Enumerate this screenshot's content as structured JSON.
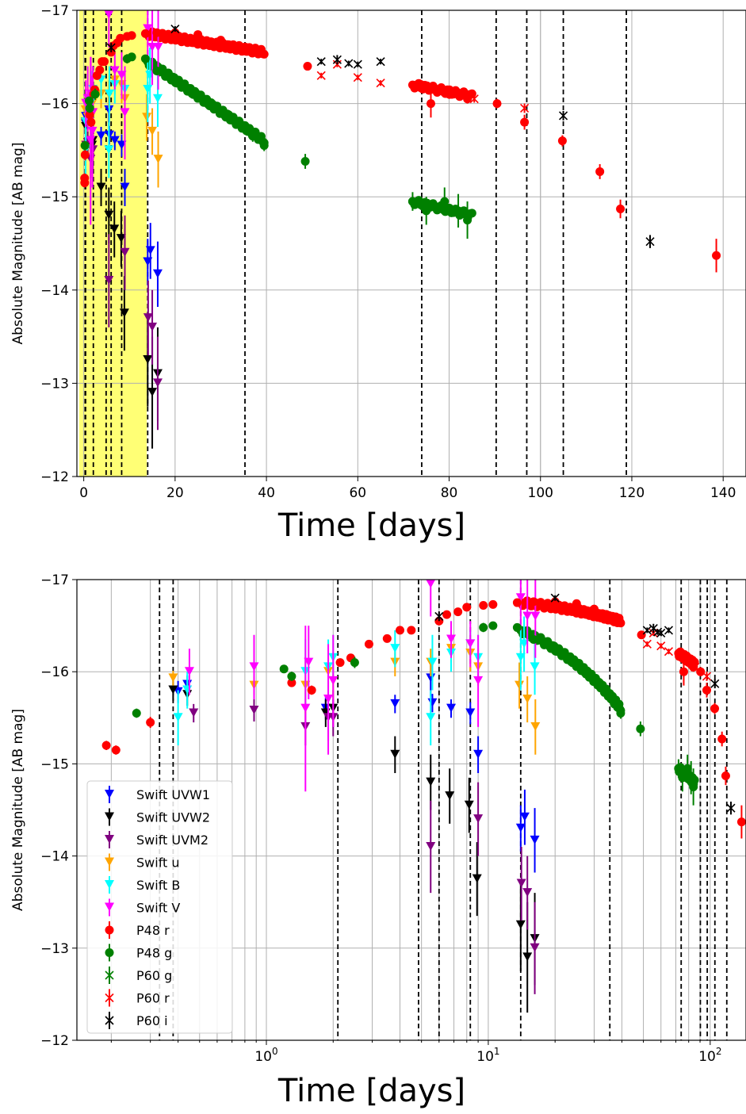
{
  "colors": {
    "Swift UVW1": "#0000ff",
    "Swift UVW2": "#000000",
    "Swift UVM2": "#800080",
    "Swift u": "#ffa500",
    "Swift B": "#00ffff",
    "Swift V": "#ff00ff",
    "P48 r": "#ff0000",
    "P48 g": "#008000",
    "P60 g": "#008000",
    "P60 r": "#ff0000",
    "P60 i": "#000000",
    "shade": "#ffff66",
    "grid": "#b0b0b0"
  },
  "chart_data": [
    {
      "type": "scatter",
      "xscale": "linear",
      "xlabel": "Time [days]",
      "ylabel": "Absolute Magnitude [AB mag]",
      "xlim": [
        -1.5,
        145
      ],
      "ylim": [
        -12,
        -17
      ],
      "xticks": [
        0,
        20,
        40,
        60,
        80,
        100,
        120,
        140
      ],
      "yticks": [
        -17,
        -16,
        -15,
        -14,
        -13,
        -12
      ],
      "grid": true,
      "legend": "none",
      "shaded_x_range": [
        -1.0,
        13.8
      ],
      "vlines": [
        0.3,
        0.4,
        2.1,
        4.9,
        6.0,
        8.3,
        14.0,
        35.3,
        74.0,
        90.3,
        97.0,
        105.0,
        118.8
      ],
      "xgrid_extra": [
        100
      ]
    },
    {
      "type": "scatter",
      "xscale": "log",
      "xlabel": "Time [days]",
      "ylabel": "Absolute Magnitude [AB mag]",
      "xlim": [
        0.14,
        145
      ],
      "ylim": [
        -12,
        -17
      ],
      "xticks": [
        1,
        10,
        100
      ],
      "yticks": [
        -17,
        -16,
        -15,
        -14,
        -13,
        -12
      ],
      "grid": true,
      "legend": "lower-left",
      "vlines": [
        0.33,
        0.38,
        2.1,
        4.85,
        6.0,
        8.3,
        14.0,
        35.3,
        74.0,
        90.3,
        97.0,
        105.0,
        118.8
      ],
      "xgrid_extra": []
    }
  ],
  "series": [
    {
      "name": "Swift UVW1",
      "marker": "tri",
      "points": [
        [
          0.4,
          -15.78,
          0.12
        ],
        [
          0.44,
          -15.86,
          0.1
        ],
        [
          1.85,
          -15.6,
          0.12
        ],
        [
          3.8,
          -15.65,
          0.1
        ],
        [
          5.5,
          -15.93,
          0.2
        ],
        [
          5.6,
          -15.66,
          0.1
        ],
        [
          6.8,
          -15.6,
          0.1
        ],
        [
          8.3,
          -15.55,
          0.12
        ],
        [
          9.0,
          -15.1,
          0.2
        ],
        [
          14.0,
          -14.3,
          0.25
        ],
        [
          14.6,
          -14.42,
          0.3
        ],
        [
          16.2,
          -14.17,
          0.35
        ]
      ]
    },
    {
      "name": "Swift UVW2",
      "marker": "tri",
      "points": [
        [
          0.38,
          -15.8,
          0.12
        ],
        [
          0.44,
          -15.75,
          0.12
        ],
        [
          1.85,
          -15.55,
          0.15
        ],
        [
          2.0,
          -15.6,
          0.2
        ],
        [
          3.8,
          -15.1,
          0.2
        ],
        [
          5.5,
          -14.8,
          0.3
        ],
        [
          6.7,
          -14.65,
          0.3
        ],
        [
          8.2,
          -14.55,
          0.3
        ],
        [
          8.9,
          -13.75,
          0.4
        ],
        [
          14.0,
          -13.25,
          0.5
        ],
        [
          15.0,
          -12.9,
          0.6
        ],
        [
          16.2,
          -13.1,
          0.5
        ]
      ]
    },
    {
      "name": "Swift UVM2",
      "marker": "tri",
      "points": [
        [
          0.47,
          -15.55,
          0.1
        ],
        [
          0.88,
          -15.58,
          0.12
        ],
        [
          1.5,
          -15.4,
          0.2
        ],
        [
          1.9,
          -15.5,
          0.25
        ],
        [
          2.0,
          -15.5,
          0.2
        ],
        [
          5.5,
          -14.1,
          0.5
        ],
        [
          9.0,
          -14.4,
          0.4
        ],
        [
          14.1,
          -13.7,
          0.4
        ],
        [
          15.0,
          -13.6,
          0.4
        ],
        [
          16.2,
          -13.0,
          0.5
        ]
      ]
    },
    {
      "name": "Swift u",
      "marker": "tri",
      "points": [
        [
          0.38,
          -15.93,
          0.08
        ],
        [
          0.88,
          -15.85,
          0.1
        ],
        [
          1.5,
          -15.85,
          0.3
        ],
        [
          1.9,
          -16.0,
          0.2
        ],
        [
          2.0,
          -15.9,
          0.2
        ],
        [
          3.8,
          -16.1,
          0.15
        ],
        [
          5.5,
          -16.1,
          0.15
        ],
        [
          6.8,
          -16.25,
          0.15
        ],
        [
          8.3,
          -16.2,
          0.2
        ],
        [
          9.0,
          -16.05,
          0.2
        ],
        [
          13.8,
          -15.85,
          0.25
        ],
        [
          15.0,
          -15.7,
          0.25
        ],
        [
          16.3,
          -15.4,
          0.3
        ]
      ]
    },
    {
      "name": "Swift B",
      "marker": "tri",
      "points": [
        [
          0.4,
          -15.5,
          0.3
        ],
        [
          0.44,
          -15.8,
          0.2
        ],
        [
          1.5,
          -16.0,
          0.35
        ],
        [
          1.9,
          -16.05,
          0.3
        ],
        [
          2.0,
          -16.15,
          0.25
        ],
        [
          3.8,
          -16.25,
          0.2
        ],
        [
          5.5,
          -15.5,
          0.3
        ],
        [
          5.6,
          -16.1,
          0.3
        ],
        [
          6.8,
          -16.2,
          0.2
        ],
        [
          8.3,
          -16.3,
          0.15
        ],
        [
          9.0,
          -16.15,
          0.25
        ],
        [
          14.0,
          -16.15,
          0.35
        ],
        [
          14.5,
          -16.3,
          0.3
        ],
        [
          16.2,
          -16.05,
          0.3
        ]
      ]
    },
    {
      "name": "Swift V",
      "marker": "tri",
      "points": [
        [
          0.45,
          -16.0,
          0.25
        ],
        [
          0.88,
          -16.05,
          0.35
        ],
        [
          1.5,
          -15.6,
          0.9
        ],
        [
          1.55,
          -16.1,
          0.4
        ],
        [
          1.9,
          -15.7,
          0.6
        ],
        [
          2.0,
          -15.9,
          0.5
        ],
        [
          5.5,
          -16.95,
          0.35
        ],
        [
          6.8,
          -16.35,
          0.2
        ],
        [
          8.3,
          -16.3,
          0.25
        ],
        [
          9.0,
          -15.9,
          0.5
        ],
        [
          14.0,
          -16.8,
          0.35
        ],
        [
          15.0,
          -16.6,
          0.4
        ],
        [
          16.3,
          -16.6,
          0.45
        ]
      ]
    },
    {
      "name": "P48 r",
      "marker": "circle",
      "points": [
        [
          0.19,
          -15.2,
          0.05
        ],
        [
          0.21,
          -15.15,
          0.05
        ],
        [
          0.3,
          -15.45,
          0.06
        ],
        [
          1.3,
          -15.88,
          0.04
        ],
        [
          1.6,
          -15.8,
          0.05
        ],
        [
          2.15,
          -16.1,
          0.04
        ],
        [
          2.4,
          -16.15,
          0.04
        ],
        [
          2.9,
          -16.3,
          0.04
        ],
        [
          3.5,
          -16.36,
          0.04
        ],
        [
          4.0,
          -16.45,
          0.04
        ],
        [
          4.5,
          -16.45,
          0.04
        ],
        [
          6.0,
          -16.55,
          0.04
        ],
        [
          6.5,
          -16.62,
          0.04
        ],
        [
          7.3,
          -16.65,
          0.04
        ],
        [
          8.0,
          -16.7,
          0.04
        ],
        [
          9.5,
          -16.72,
          0.04
        ],
        [
          10.5,
          -16.73,
          0.04
        ],
        [
          13.5,
          -16.75,
          0.04
        ],
        [
          16,
          -16.76,
          0.03
        ],
        [
          20,
          -16.76,
          0.03
        ],
        [
          25,
          -16.74,
          0.03
        ],
        [
          30,
          -16.68,
          0.03
        ],
        [
          35,
          -16.6,
          0.03
        ],
        [
          39,
          -16.55,
          0.03
        ],
        [
          49,
          -16.4,
          0.04
        ],
        [
          74,
          -16.2,
          0.05
        ],
        [
          80,
          -16.1,
          0.05
        ],
        [
          84,
          -16.05,
          0.05
        ],
        [
          76,
          -16.0,
          0.15
        ],
        [
          90.5,
          -16.0,
          0.05
        ],
        [
          96.5,
          -15.8,
          0.08
        ],
        [
          104.8,
          -15.6,
          0.06
        ],
        [
          113,
          -15.27,
          0.08
        ],
        [
          117.5,
          -14.87,
          0.1
        ],
        [
          138.5,
          -14.37,
          0.18
        ]
      ]
    },
    {
      "name": "P48 g",
      "marker": "circle",
      "points": [
        [
          0.26,
          -15.55,
          0.05
        ],
        [
          1.2,
          -16.03,
          0.04
        ],
        [
          1.3,
          -15.95,
          0.05
        ],
        [
          2.5,
          -16.1,
          0.06
        ],
        [
          9.5,
          -16.48,
          0.05
        ],
        [
          10.5,
          -16.5,
          0.04
        ],
        [
          13.5,
          -16.48,
          0.04
        ],
        [
          16,
          -16.35,
          0.04
        ],
        [
          20,
          -16.23,
          0.04
        ],
        [
          24,
          -16.1,
          0.04
        ],
        [
          29,
          -15.95,
          0.05
        ],
        [
          34,
          -15.8,
          0.05
        ],
        [
          37,
          -15.65,
          0.06
        ],
        [
          39.5,
          -15.55,
          0.06
        ],
        [
          48.5,
          -15.38,
          0.08
        ],
        [
          72,
          -14.95,
          0.1
        ],
        [
          75,
          -14.85,
          0.15
        ],
        [
          79,
          -14.95,
          0.15
        ],
        [
          82,
          -14.85,
          0.18
        ],
        [
          84,
          -14.75,
          0.2
        ]
      ]
    },
    {
      "name": "P60 g",
      "marker": "x",
      "points": []
    },
    {
      "name": "P60 r",
      "marker": "x",
      "points": [
        [
          52,
          -16.3,
          0.03
        ],
        [
          55.5,
          -16.42,
          0.03
        ],
        [
          60,
          -16.28,
          0.03
        ],
        [
          65,
          -16.22,
          0.03
        ],
        [
          85.5,
          -16.05,
          0.04
        ],
        [
          96.5,
          -15.95,
          0.05
        ]
      ]
    },
    {
      "name": "P60 i",
      "marker": "x",
      "points": [
        [
          6.0,
          -16.6,
          0.05
        ],
        [
          20,
          -16.8,
          0.03
        ],
        [
          52,
          -16.45,
          0.03
        ],
        [
          55.5,
          -16.47,
          0.05
        ],
        [
          58,
          -16.43,
          0.03
        ],
        [
          60,
          -16.42,
          0.03
        ],
        [
          65,
          -16.45,
          0.03
        ],
        [
          105,
          -15.87,
          0.05
        ],
        [
          124,
          -14.52,
          0.07
        ]
      ]
    }
  ],
  "bands": [
    {
      "name": "P48 r",
      "x0": 14,
      "x1": 39.5,
      "y0": -16.75,
      "y1": -16.55,
      "n": 80
    },
    {
      "name": "P48 g",
      "x0": 14,
      "x1": 39.5,
      "y0": -16.45,
      "y1": -15.6,
      "n": 80
    },
    {
      "name": "P48 r",
      "x0": 72,
      "x1": 85,
      "y0": -16.2,
      "y1": -16.08,
      "n": 30
    },
    {
      "name": "P48 g",
      "x0": 72,
      "x1": 85,
      "y0": -14.95,
      "y1": -14.8,
      "n": 30
    }
  ]
}
